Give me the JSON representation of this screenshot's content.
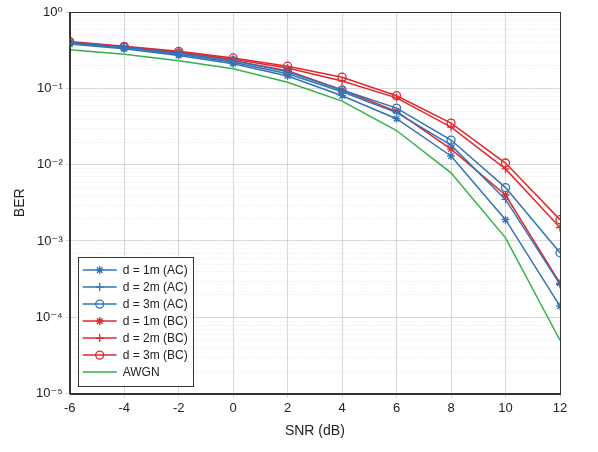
{
  "chart_data": {
    "type": "line",
    "x_label": "SNR (dB)",
    "y_label": "BER",
    "log": "y",
    "grid": true,
    "legend": "lower left",
    "x": [
      -6,
      -4,
      -2,
      0,
      2,
      4,
      6,
      8,
      10,
      12
    ],
    "xlim": [
      -6,
      12
    ],
    "xticks": [
      -6,
      -4,
      -2,
      0,
      2,
      4,
      6,
      8,
      10,
      12
    ],
    "ylim": [
      1e-05,
      1
    ],
    "yticks": [
      {
        "value": 1e-05,
        "label": "10⁻⁵"
      },
      {
        "value": 0.0001,
        "label": "10⁻⁴"
      },
      {
        "value": 0.001,
        "label": "10⁻³"
      },
      {
        "value": 0.01,
        "label": "10⁻²"
      },
      {
        "value": 0.1,
        "label": "10⁻¹"
      },
      {
        "value": 1,
        "label": "10⁰"
      }
    ],
    "series": [
      {
        "name": "d = 1m (AC)",
        "color": "#3274b5",
        "marker": "star",
        "line_style": "solid",
        "values": [
          0.38,
          0.33,
          0.27,
          0.21,
          0.145,
          0.08,
          0.04,
          0.013,
          0.0019,
          0.00014
        ]
      },
      {
        "name": "d = 2m (AC)",
        "color": "#3274b5",
        "marker": "plus",
        "line_style": "solid",
        "values": [
          0.39,
          0.34,
          0.28,
          0.22,
          0.155,
          0.09,
          0.048,
          0.018,
          0.0035,
          0.00027
        ]
      },
      {
        "name": "d = 3m (AC)",
        "color": "#3274b5",
        "marker": "circle",
        "line_style": "solid",
        "values": [
          0.4,
          0.345,
          0.29,
          0.23,
          0.165,
          0.095,
          0.055,
          0.021,
          0.005,
          0.0007
        ]
      },
      {
        "name": "d = 1m (BC)",
        "color": "#e0282e",
        "marker": "star",
        "line_style": "solid",
        "values": [
          0.4,
          0.34,
          0.29,
          0.23,
          0.17,
          0.095,
          0.05,
          0.016,
          0.004,
          0.00028
        ]
      },
      {
        "name": "d = 2m (BC)",
        "color": "#e0282e",
        "marker": "plus",
        "line_style": "solid",
        "values": [
          0.4,
          0.35,
          0.3,
          0.24,
          0.185,
          0.125,
          0.075,
          0.031,
          0.0088,
          0.0015
        ]
      },
      {
        "name": "d = 3m (BC)",
        "color": "#e0282e",
        "marker": "circle",
        "line_style": "solid",
        "values": [
          0.41,
          0.355,
          0.305,
          0.25,
          0.195,
          0.14,
          0.08,
          0.035,
          0.0105,
          0.0019
        ]
      },
      {
        "name": "AWGN",
        "color": "#33b24a",
        "marker": "none",
        "line_style": "solid",
        "values": [
          0.32,
          0.28,
          0.23,
          0.18,
          0.12,
          0.068,
          0.028,
          0.0078,
          0.0011,
          5e-05
        ]
      }
    ]
  }
}
